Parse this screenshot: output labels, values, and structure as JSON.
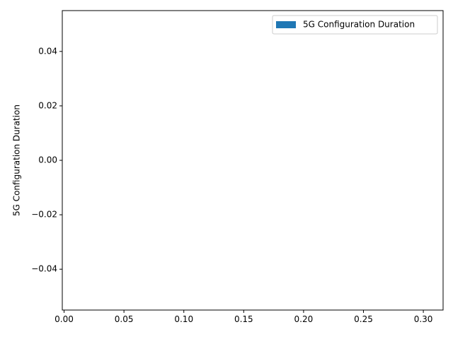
{
  "chart_data": {
    "type": "bar",
    "title": "",
    "xlabel": "",
    "ylabel": "5G Configuration Duration",
    "xlim": [
      -0.0015,
      0.3165
    ],
    "ylim": [
      -0.055,
      0.055
    ],
    "xticks": [
      0.0,
      0.05,
      0.1,
      0.15,
      0.2,
      0.25,
      0.3
    ],
    "xtick_labels": [
      "0.00",
      "0.05",
      "0.10",
      "0.15",
      "0.20",
      "0.25",
      "0.30"
    ],
    "yticks": [
      0.04,
      0.02,
      0.0,
      -0.02,
      -0.04
    ],
    "ytick_labels": [
      "0.04",
      "0.02",
      "0.00",
      "−0.02",
      "−0.04"
    ],
    "grid": false,
    "legend": {
      "position": "top-right",
      "entries": [
        {
          "label": "5G Configuration Duration",
          "color": "#1f77b4"
        }
      ]
    },
    "series": [
      {
        "name": "5G Configuration Duration",
        "color": "#1f77b4",
        "values": []
      }
    ],
    "categories": []
  }
}
